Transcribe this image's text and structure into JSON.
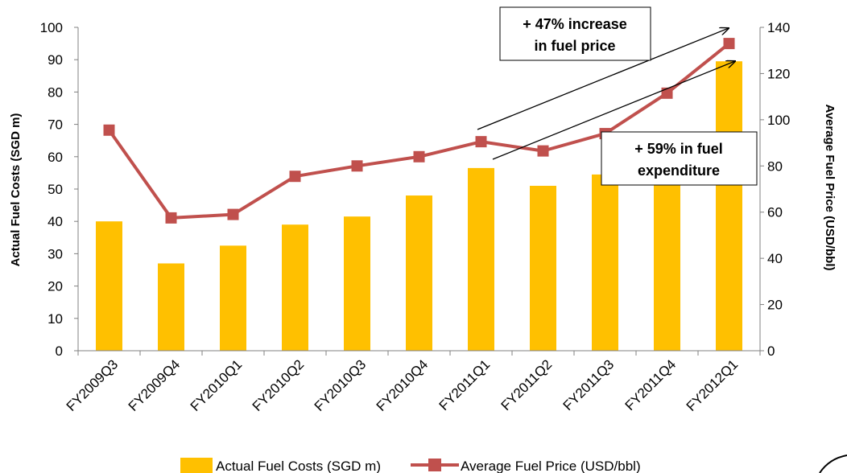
{
  "chart_data": {
    "type": "bar+line",
    "categories": [
      "FY2009Q3",
      "FY2009Q4",
      "FY2010Q1",
      "FY2010Q2",
      "FY2010Q3",
      "FY2010Q4",
      "FY2011Q1",
      "FY2011Q2",
      "FY2011Q3",
      "FY2011Q4",
      "FY2012Q1"
    ],
    "series": [
      {
        "name": "Actual Fuel Costs (SGD m)",
        "type": "bar",
        "axis": "left",
        "color": "#FFC000",
        "values": [
          40,
          27,
          32.5,
          39,
          41.5,
          48,
          56.5,
          51,
          54.5,
          67.5,
          89.5
        ]
      },
      {
        "name": "Average Fuel Price (USD/bbl)",
        "type": "line",
        "axis": "right",
        "color": "#C0504D",
        "values": [
          95.5,
          57.5,
          59,
          75.5,
          80,
          84,
          90.5,
          86.5,
          94,
          111.5,
          133
        ]
      }
    ],
    "ylabel": "Actual Fuel Costs (SGD m)",
    "y2label": "Average Fuel Price (USD/bbl)",
    "ylim": [
      0,
      100
    ],
    "y2lim": [
      0,
      140
    ],
    "yticks": [
      "0",
      "10",
      "20",
      "30",
      "40",
      "50",
      "60",
      "70",
      "80",
      "90",
      "100"
    ],
    "y2ticks": [
      "0",
      "20",
      "40",
      "60",
      "80",
      "100",
      "120",
      "140"
    ],
    "grid": false,
    "legend_position": "bottom",
    "annotations": [
      {
        "lines": [
          "+ 47% increase",
          "in fuel price"
        ]
      },
      {
        "lines": [
          "+ 59% in fuel",
          "expenditure"
        ]
      }
    ]
  }
}
